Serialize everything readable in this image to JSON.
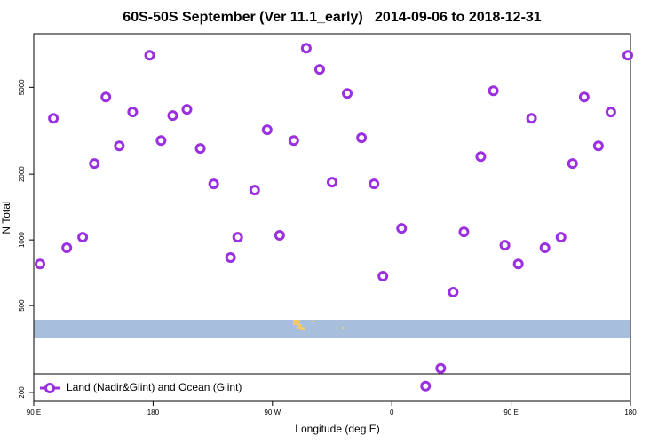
{
  "chart_data": {
    "type": "scatter",
    "title": "60S-50S September (Ver 11.1_early)   2014-09-06 to 2018-12-31",
    "xlabel": "Longitude (deg E)",
    "ylabel": "N Total",
    "xlim": [
      90,
      540
    ],
    "ylim": [
      182,
      8800
    ],
    "log_y": true,
    "legend": "bottom-left",
    "xticks": [
      {
        "value": 90,
        "label": "90 E"
      },
      {
        "value": 180,
        "label": "180"
      },
      {
        "value": 270,
        "label": "90 W"
      },
      {
        "value": 360,
        "label": "0"
      },
      {
        "value": 450,
        "label": "90 E"
      },
      {
        "value": 540,
        "label": "180"
      }
    ],
    "yticks": [
      200,
      500,
      1000,
      2000,
      5000
    ],
    "series": [
      {
        "name": "Land (Nadir&Glint) and Ocean (Glint)",
        "color": "#9b30e0",
        "x": [
          94.7,
          104.8,
          114.9,
          126.9,
          135.7,
          144.4,
          154.5,
          164.6,
          177.4,
          186.0,
          194.8,
          205.5,
          215.6,
          225.7,
          238.4,
          243.8,
          256.6,
          266.0,
          275.4,
          286.1,
          295.5,
          305.6,
          315.0,
          326.4,
          337.2,
          346.6,
          353.3,
          367.4,
          385.5,
          396.9,
          406.3,
          414.4,
          427.1,
          436.6,
          445.3,
          455.4,
          465.4,
          475.5,
          487.6,
          496.3,
          505.1,
          515.8,
          525.2,
          538.0
        ],
        "values": [
          776,
          3605,
          920,
          1029,
          2238,
          4516,
          2698,
          3854,
          7011,
          2854,
          3711,
          3962,
          2624,
          1804,
          830,
          1029,
          1690,
          3194,
          1049,
          2854,
          7556,
          6040,
          1838,
          4688,
          2937,
          1804,
          682,
          1130,
          214,
          258,
          576,
          1088,
          2411,
          4820,
          946,
          776,
          3605,
          920,
          1029,
          2238,
          4516,
          2698,
          3854,
          7011
        ]
      }
    ]
  }
}
